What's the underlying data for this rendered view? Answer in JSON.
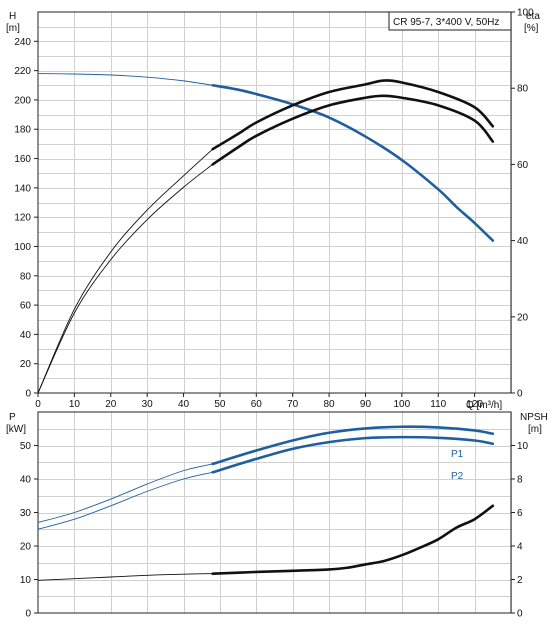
{
  "colors": {
    "blue": "#1f5f9f",
    "black": "#111111",
    "grid": "#d0d0d0"
  },
  "chart_data": [
    {
      "type": "line",
      "panel": "upper",
      "title": "CR 95-7, 3*400 V, 50Hz",
      "xlabel": "Q [m³/h]",
      "ylabel_left": [
        "H",
        "[m]"
      ],
      "ylabel_right": [
        "eta",
        "[%]"
      ],
      "xlim": [
        0,
        130
      ],
      "ylim_left": [
        0,
        260
      ],
      "ylim_right": [
        0,
        100
      ],
      "x_ticks": [
        "0",
        "10",
        "20",
        "30",
        "40",
        "50",
        "60",
        "70",
        "80",
        "90",
        "100",
        "110",
        "120"
      ],
      "y_ticks_left": [
        "0",
        "20",
        "40",
        "60",
        "80",
        "100",
        "120",
        "140",
        "160",
        "180",
        "200",
        "220",
        "240"
      ],
      "y_ticks_right": [
        "0",
        "20",
        "40",
        "60",
        "80",
        "100"
      ],
      "grid": true,
      "highlight_range": [
        48,
        125
      ],
      "series": [
        {
          "name": "H",
          "color": "#1f5f9f",
          "x": [
            0,
            10,
            20,
            30,
            40,
            48,
            55,
            60,
            70,
            80,
            90,
            100,
            110,
            115,
            120,
            125
          ],
          "y": [
            218,
            217.7,
            217,
            215.5,
            213,
            210,
            207,
            204,
            197,
            188,
            175,
            159,
            139,
            127,
            116,
            104
          ]
        },
        {
          "name": "eta 1",
          "color": "#111111",
          "x": [
            0,
            10,
            20,
            30,
            40,
            48,
            55,
            60,
            70,
            80,
            90,
            95,
            100,
            110,
            120,
            125
          ],
          "y": [
            0,
            22,
            37,
            48,
            57,
            64,
            68,
            71,
            75.5,
            79,
            81,
            82,
            81.5,
            79,
            75,
            70
          ]
        },
        {
          "name": "eta 2",
          "color": "#111111",
          "x": [
            0,
            10,
            20,
            30,
            40,
            48,
            55,
            60,
            70,
            80,
            90,
            95,
            100,
            110,
            120,
            125
          ],
          "y": [
            0,
            21,
            35,
            45.5,
            54,
            60,
            64.5,
            67.5,
            72,
            75.5,
            77.5,
            78,
            77.5,
            75.5,
            71.5,
            66
          ]
        }
      ]
    },
    {
      "type": "line",
      "panel": "lower",
      "ylabel_left": [
        "P",
        "[kW]"
      ],
      "ylabel_right": [
        "NPSH",
        "[m]"
      ],
      "xlim": [
        0,
        130
      ],
      "ylim_left": [
        0,
        60
      ],
      "ylim_right": [
        0,
        12
      ],
      "y_ticks_left": [
        "0",
        "10",
        "20",
        "30",
        "40",
        "50"
      ],
      "y_ticks_right": [
        "0",
        "2",
        "4",
        "6",
        "8",
        "10"
      ],
      "grid": true,
      "highlight_range": [
        48,
        125
      ],
      "series": [
        {
          "name": "P1",
          "color": "#1f5f9f",
          "x": [
            0,
            10,
            20,
            30,
            40,
            48,
            60,
            70,
            80,
            90,
            100,
            110,
            120,
            125
          ],
          "y": [
            27,
            30,
            34,
            38.5,
            42.5,
            44.5,
            48.5,
            51.5,
            53.8,
            55.1,
            55.6,
            55.4,
            54.5,
            53.5
          ]
        },
        {
          "name": "P2",
          "color": "#1f5f9f",
          "x": [
            0,
            10,
            20,
            30,
            40,
            48,
            60,
            70,
            80,
            90,
            100,
            110,
            120,
            125
          ],
          "y": [
            25,
            28,
            32,
            36.3,
            40,
            42,
            46,
            49,
            51,
            52.2,
            52.5,
            52.3,
            51.5,
            50.5
          ]
        },
        {
          "name": "NPSH",
          "color": "#111111",
          "x": [
            0,
            10,
            20,
            30,
            40,
            48,
            60,
            70,
            80,
            85,
            90,
            95,
            100,
            105,
            110,
            115,
            120,
            125
          ],
          "y": [
            1.95,
            2.05,
            2.15,
            2.25,
            2.32,
            2.35,
            2.45,
            2.52,
            2.6,
            2.7,
            2.9,
            3.1,
            3.45,
            3.9,
            4.4,
            5.1,
            5.6,
            6.4
          ]
        }
      ]
    }
  ]
}
